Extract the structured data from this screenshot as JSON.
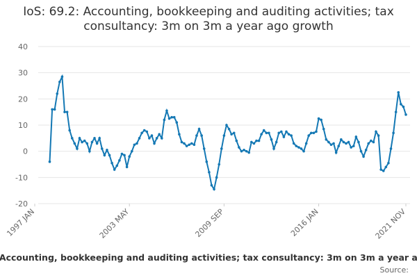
{
  "chart_data": {
    "type": "line",
    "title": "IoS: 69.2: Accounting, bookkeeping and auditing activities; tax consultancy: 3m on 3m a year ago growth",
    "source": "Source:",
    "x": [
      "1998-01",
      "1998-03",
      "1998-05",
      "1998-07",
      "1998-09",
      "1998-11",
      "1999-01",
      "1999-03",
      "1999-05",
      "1999-07",
      "1999-09",
      "1999-11",
      "2000-01",
      "2000-03",
      "2000-05",
      "2000-07",
      "2000-09",
      "2000-11",
      "2001-01",
      "2001-03",
      "2001-05",
      "2001-07",
      "2001-09",
      "2001-11",
      "2002-01",
      "2002-03",
      "2002-05",
      "2002-07",
      "2002-09",
      "2002-11",
      "2003-01",
      "2003-03",
      "2003-05",
      "2003-07",
      "2003-09",
      "2003-11",
      "2004-01",
      "2004-03",
      "2004-05",
      "2004-07",
      "2004-09",
      "2004-11",
      "2005-01",
      "2005-03",
      "2005-05",
      "2005-07",
      "2005-09",
      "2005-11",
      "2006-01",
      "2006-03",
      "2006-05",
      "2006-07",
      "2006-09",
      "2006-11",
      "2007-01",
      "2007-03",
      "2007-05",
      "2007-07",
      "2007-09",
      "2007-11",
      "2008-01",
      "2008-03",
      "2008-05",
      "2008-07",
      "2008-09",
      "2008-11",
      "2009-01",
      "2009-03",
      "2009-05",
      "2009-07",
      "2009-09",
      "2009-11",
      "2010-01",
      "2010-03",
      "2010-05",
      "2010-07",
      "2010-09",
      "2010-11",
      "2011-01",
      "2011-03",
      "2011-05",
      "2011-07",
      "2011-09",
      "2011-11",
      "2012-01",
      "2012-03",
      "2012-05",
      "2012-07",
      "2012-09",
      "2012-11",
      "2013-01",
      "2013-03",
      "2013-05",
      "2013-07",
      "2013-09",
      "2013-11",
      "2014-01",
      "2014-03",
      "2014-05",
      "2014-07",
      "2014-09",
      "2014-11",
      "2015-01",
      "2015-03",
      "2015-05",
      "2015-07",
      "2015-09",
      "2015-11",
      "2016-01",
      "2016-03",
      "2016-05",
      "2016-07",
      "2016-09",
      "2016-11",
      "2017-01",
      "2017-03",
      "2017-05",
      "2017-07",
      "2017-09",
      "2017-11",
      "2018-01",
      "2018-03",
      "2018-05",
      "2018-07",
      "2018-09",
      "2018-11",
      "2019-01",
      "2019-03",
      "2019-05",
      "2019-07",
      "2019-09",
      "2019-11",
      "2020-01",
      "2020-03",
      "2020-05",
      "2020-07",
      "2020-09",
      "2020-11",
      "2021-01",
      "2021-03",
      "2021-05",
      "2021-07",
      "2021-09",
      "2021-11"
    ],
    "series": [
      {
        "name": "IoS: 69.2: Accounting, bookkeeping and auditing activities; tax consultancy: 3m on 3m a year ago growth",
        "color": "#1478b4",
        "values": [
          -4,
          16,
          16,
          22,
          26.5,
          28.5,
          15,
          15,
          8,
          5,
          3,
          1,
          5,
          3.5,
          4,
          3,
          0,
          3.5,
          5,
          3,
          5,
          1,
          -1.5,
          0.5,
          -1.5,
          -4.5,
          -7,
          -5.5,
          -3.5,
          -1,
          -1.5,
          -6,
          -2,
          0,
          2.5,
          3,
          5,
          7,
          8,
          7.5,
          5,
          6,
          3,
          5,
          6.5,
          5,
          12,
          15.5,
          12.5,
          13,
          13,
          11,
          6.5,
          3.5,
          3,
          2,
          2.5,
          3,
          2.5,
          6,
          8.5,
          6,
          1,
          -4,
          -8,
          -13,
          -14.5,
          -10,
          -5,
          1,
          6,
          10,
          8.5,
          6.5,
          7,
          4,
          1.5,
          0,
          0.5,
          0,
          -0.5,
          3.5,
          3,
          4,
          4,
          6.5,
          8,
          7,
          7,
          4.5,
          1,
          3.5,
          7,
          7.5,
          5.5,
          7.5,
          6.5,
          6,
          3,
          2,
          1.5,
          1,
          0,
          3,
          6,
          7,
          7,
          7.5,
          12.5,
          12,
          8.5,
          4.5,
          3.5,
          2.5,
          3,
          -0.5,
          2,
          4.5,
          3.5,
          3,
          3.5,
          1.5,
          2,
          5.5,
          3.5,
          0,
          -2,
          0.5,
          3,
          4,
          3.5,
          7.5,
          6,
          -7,
          -7.5,
          -6,
          -4.5,
          1,
          7,
          15,
          22.5,
          18,
          17,
          14
        ]
      }
    ],
    "xlim": [
      "1997-01",
      "2021-11"
    ],
    "xticks": [
      {
        "value": "1997-01",
        "label": "1997 JAN"
      },
      {
        "value": "2003-05",
        "label": "2003 MAY"
      },
      {
        "value": "2009-09",
        "label": "2009 SEP"
      },
      {
        "value": "2016-01",
        "label": "2016 JAN"
      },
      {
        "value": "2021-11",
        "label": "2021 NOV"
      }
    ],
    "ylim": [
      -20,
      40
    ],
    "yticks": [
      -20,
      -10,
      0,
      10,
      20,
      30,
      40
    ],
    "grid": true
  }
}
